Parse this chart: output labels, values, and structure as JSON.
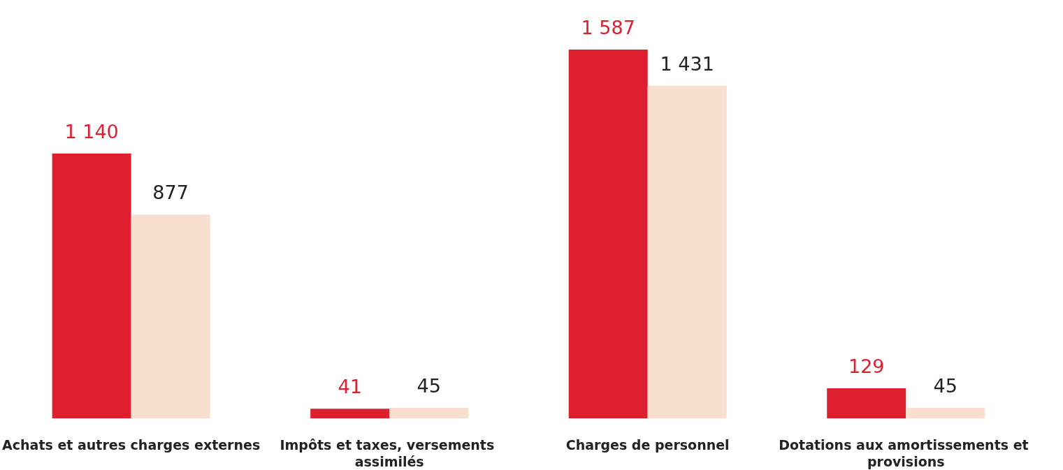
{
  "chart_data": {
    "type": "bar",
    "categories": [
      "Achats et autres charges externes",
      "Impôts et taxes, versements assimilés",
      "Charges de personnel",
      "Dotations aux amortissements et provisions"
    ],
    "series": [
      {
        "color": "#dd1f30",
        "values": [
          1140,
          41,
          1587,
          129
        ],
        "value_labels": [
          "1 140",
          "41",
          "1 587",
          "129"
        ]
      },
      {
        "color": "#f9dfd0",
        "values": [
          877,
          45,
          1431,
          45
        ],
        "value_labels": [
          "877",
          "45",
          "1 431",
          "45"
        ]
      }
    ]
  }
}
